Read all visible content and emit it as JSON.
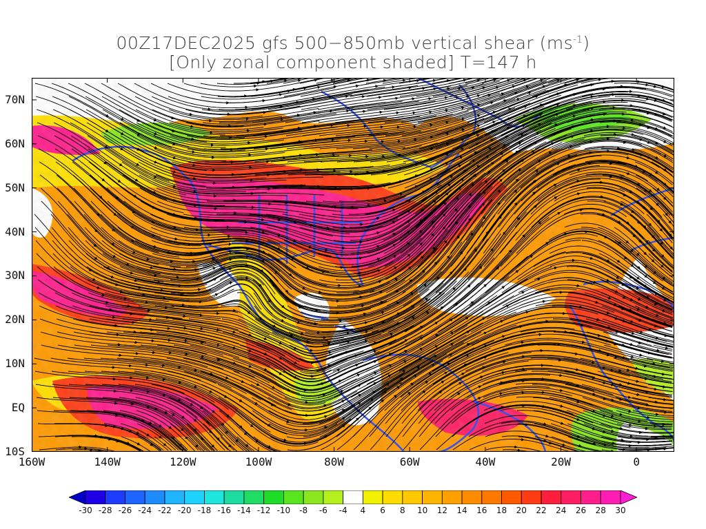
{
  "title": {
    "line1_prefix": "00Z17DEC2025 gfs 500−850mb vertical shear (ms",
    "line1_sup": "-1",
    "line1_suffix": ")",
    "line2": "[Only zonal component shaded] T=147 h"
  },
  "map": {
    "lon_range": [
      -160,
      10
    ],
    "lat_range": [
      -10,
      75
    ],
    "lat_labels": [
      "70N",
      "60N",
      "50N",
      "40N",
      "30N",
      "20N",
      "10N",
      "EQ",
      "10S"
    ],
    "lat_values": [
      70,
      60,
      50,
      40,
      30,
      20,
      10,
      0,
      -10
    ],
    "lon_labels": [
      "160W",
      "140W",
      "120W",
      "100W",
      "80W",
      "60W",
      "40W",
      "20W",
      "0"
    ],
    "lon_values": [
      -160,
      -140,
      -120,
      -100,
      -80,
      -60,
      -40,
      -20,
      0
    ],
    "coastline_color": "#3a55e6",
    "streamline_color": "#000000"
  },
  "colorbar": {
    "tick_labels": [
      "-30",
      "-28",
      "-26",
      "-24",
      "-22",
      "-20",
      "-18",
      "-16",
      "-14",
      "-12",
      "-10",
      "-8",
      "-6",
      "-4",
      "4",
      "6",
      "8",
      "10",
      "12",
      "14",
      "16",
      "18",
      "20",
      "22",
      "24",
      "26",
      "28",
      "30"
    ],
    "colors": [
      "#1e00e6",
      "#1e3cff",
      "#1e64ff",
      "#1e8cff",
      "#1eb4ff",
      "#1ed2ff",
      "#1ee6dc",
      "#1edca0",
      "#1edc64",
      "#1edc28",
      "#5ae61e",
      "#8ce61e",
      "#b4f01e",
      "#ffffff",
      "#f0f000",
      "#ffdc00",
      "#ffc800",
      "#ffb400",
      "#ffa000",
      "#ff8c00",
      "#ff7800",
      "#ff5a00",
      "#ff3c14",
      "#ff1e3c",
      "#ff1e64",
      "#ff1e8c",
      "#ff1eb4"
    ],
    "under_color": "#0000c8",
    "over_color": "#ff1ed2"
  }
}
